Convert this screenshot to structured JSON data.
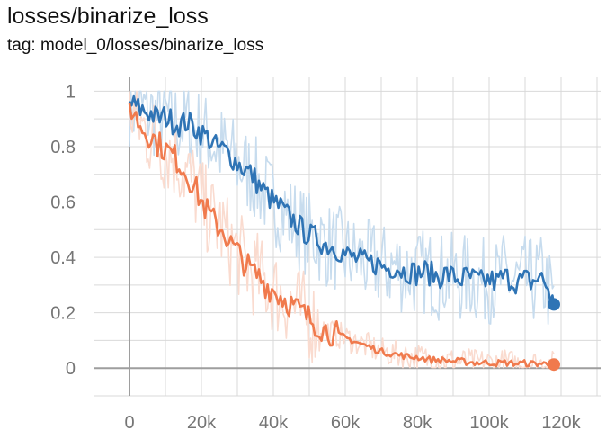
{
  "header": {
    "title": "losses/binarize_loss",
    "tag": "tag: model_0/losses/binarize_loss"
  },
  "colors": {
    "blue": "#2f74b5",
    "blue_raw": "#c7dcee",
    "orange": "#f07a4d",
    "orange_raw": "#fadbcf",
    "grid": "#d9d9d9",
    "axis": "#9e9e9e",
    "tick_text": "#757575"
  },
  "chart_data": {
    "type": "line",
    "title": "losses/binarize_loss",
    "xlabel": "",
    "ylabel": "",
    "xlim": [
      -10000,
      131000
    ],
    "ylim": [
      -0.1,
      1.05
    ],
    "x_ticks": [
      0,
      20000,
      40000,
      60000,
      80000,
      100000,
      120000
    ],
    "x_tick_labels": [
      "0",
      "20k",
      "40k",
      "60k",
      "80k",
      "100k",
      "120k"
    ],
    "y_ticks": [
      0,
      0.2,
      0.4,
      0.6,
      0.8,
      1
    ],
    "y_tick_labels": [
      "0",
      "0.2",
      "0.4",
      "0.6",
      "0.8",
      "1"
    ],
    "grid": true,
    "series": [
      {
        "name": "blue",
        "color": "#2f74b5",
        "raw_color": "#c7dcee",
        "x": [
          0,
          2000,
          4000,
          6000,
          8000,
          10000,
          12000,
          14000,
          16000,
          18000,
          20000,
          22000,
          24000,
          26000,
          28000,
          30000,
          32000,
          34000,
          36000,
          38000,
          40000,
          42000,
          44000,
          46000,
          48000,
          50000,
          52000,
          54000,
          56000,
          58000,
          60000,
          62000,
          64000,
          66000,
          68000,
          70000,
          72000,
          74000,
          76000,
          78000,
          80000,
          82000,
          84000,
          86000,
          88000,
          90000,
          92000,
          94000,
          96000,
          98000,
          100000,
          102000,
          104000,
          106000,
          108000,
          110000,
          112000,
          114000,
          116000,
          118000
        ],
        "values": [
          0.96,
          0.94,
          0.93,
          0.92,
          0.9,
          0.91,
          0.89,
          0.88,
          0.89,
          0.87,
          0.85,
          0.83,
          0.8,
          0.79,
          0.77,
          0.74,
          0.72,
          0.7,
          0.66,
          0.63,
          0.6,
          0.58,
          0.55,
          0.53,
          0.5,
          0.48,
          0.47,
          0.45,
          0.44,
          0.43,
          0.41,
          0.4,
          0.39,
          0.38,
          0.38,
          0.37,
          0.36,
          0.37,
          0.35,
          0.35,
          0.34,
          0.35,
          0.34,
          0.33,
          0.34,
          0.33,
          0.32,
          0.33,
          0.32,
          0.31,
          0.32,
          0.31,
          0.33,
          0.32,
          0.31,
          0.32,
          0.31,
          0.33,
          0.3,
          0.23
        ]
      },
      {
        "name": "orange",
        "color": "#f07a4d",
        "raw_color": "#fadbcf",
        "x": [
          0,
          2000,
          4000,
          6000,
          8000,
          10000,
          12000,
          14000,
          16000,
          18000,
          20000,
          22000,
          24000,
          26000,
          28000,
          30000,
          32000,
          34000,
          36000,
          38000,
          40000,
          42000,
          44000,
          46000,
          48000,
          50000,
          52000,
          54000,
          56000,
          58000,
          60000,
          62000,
          64000,
          66000,
          68000,
          70000,
          72000,
          74000,
          76000,
          78000,
          80000,
          82000,
          84000,
          86000,
          88000,
          90000,
          92000,
          94000,
          96000,
          98000,
          100000,
          102000,
          104000,
          106000,
          108000,
          110000,
          112000,
          114000,
          116000,
          118000
        ],
        "values": [
          0.95,
          0.9,
          0.86,
          0.84,
          0.81,
          0.79,
          0.77,
          0.74,
          0.7,
          0.66,
          0.6,
          0.56,
          0.52,
          0.5,
          0.45,
          0.42,
          0.38,
          0.35,
          0.33,
          0.3,
          0.28,
          0.26,
          0.24,
          0.22,
          0.2,
          0.18,
          0.16,
          0.14,
          0.13,
          0.12,
          0.11,
          0.1,
          0.09,
          0.08,
          0.07,
          0.06,
          0.055,
          0.05,
          0.045,
          0.04,
          0.04,
          0.035,
          0.03,
          0.03,
          0.028,
          0.025,
          0.025,
          0.022,
          0.02,
          0.02,
          0.02,
          0.018,
          0.02,
          0.018,
          0.017,
          0.018,
          0.016,
          0.017,
          0.015,
          0.013
        ]
      }
    ]
  }
}
